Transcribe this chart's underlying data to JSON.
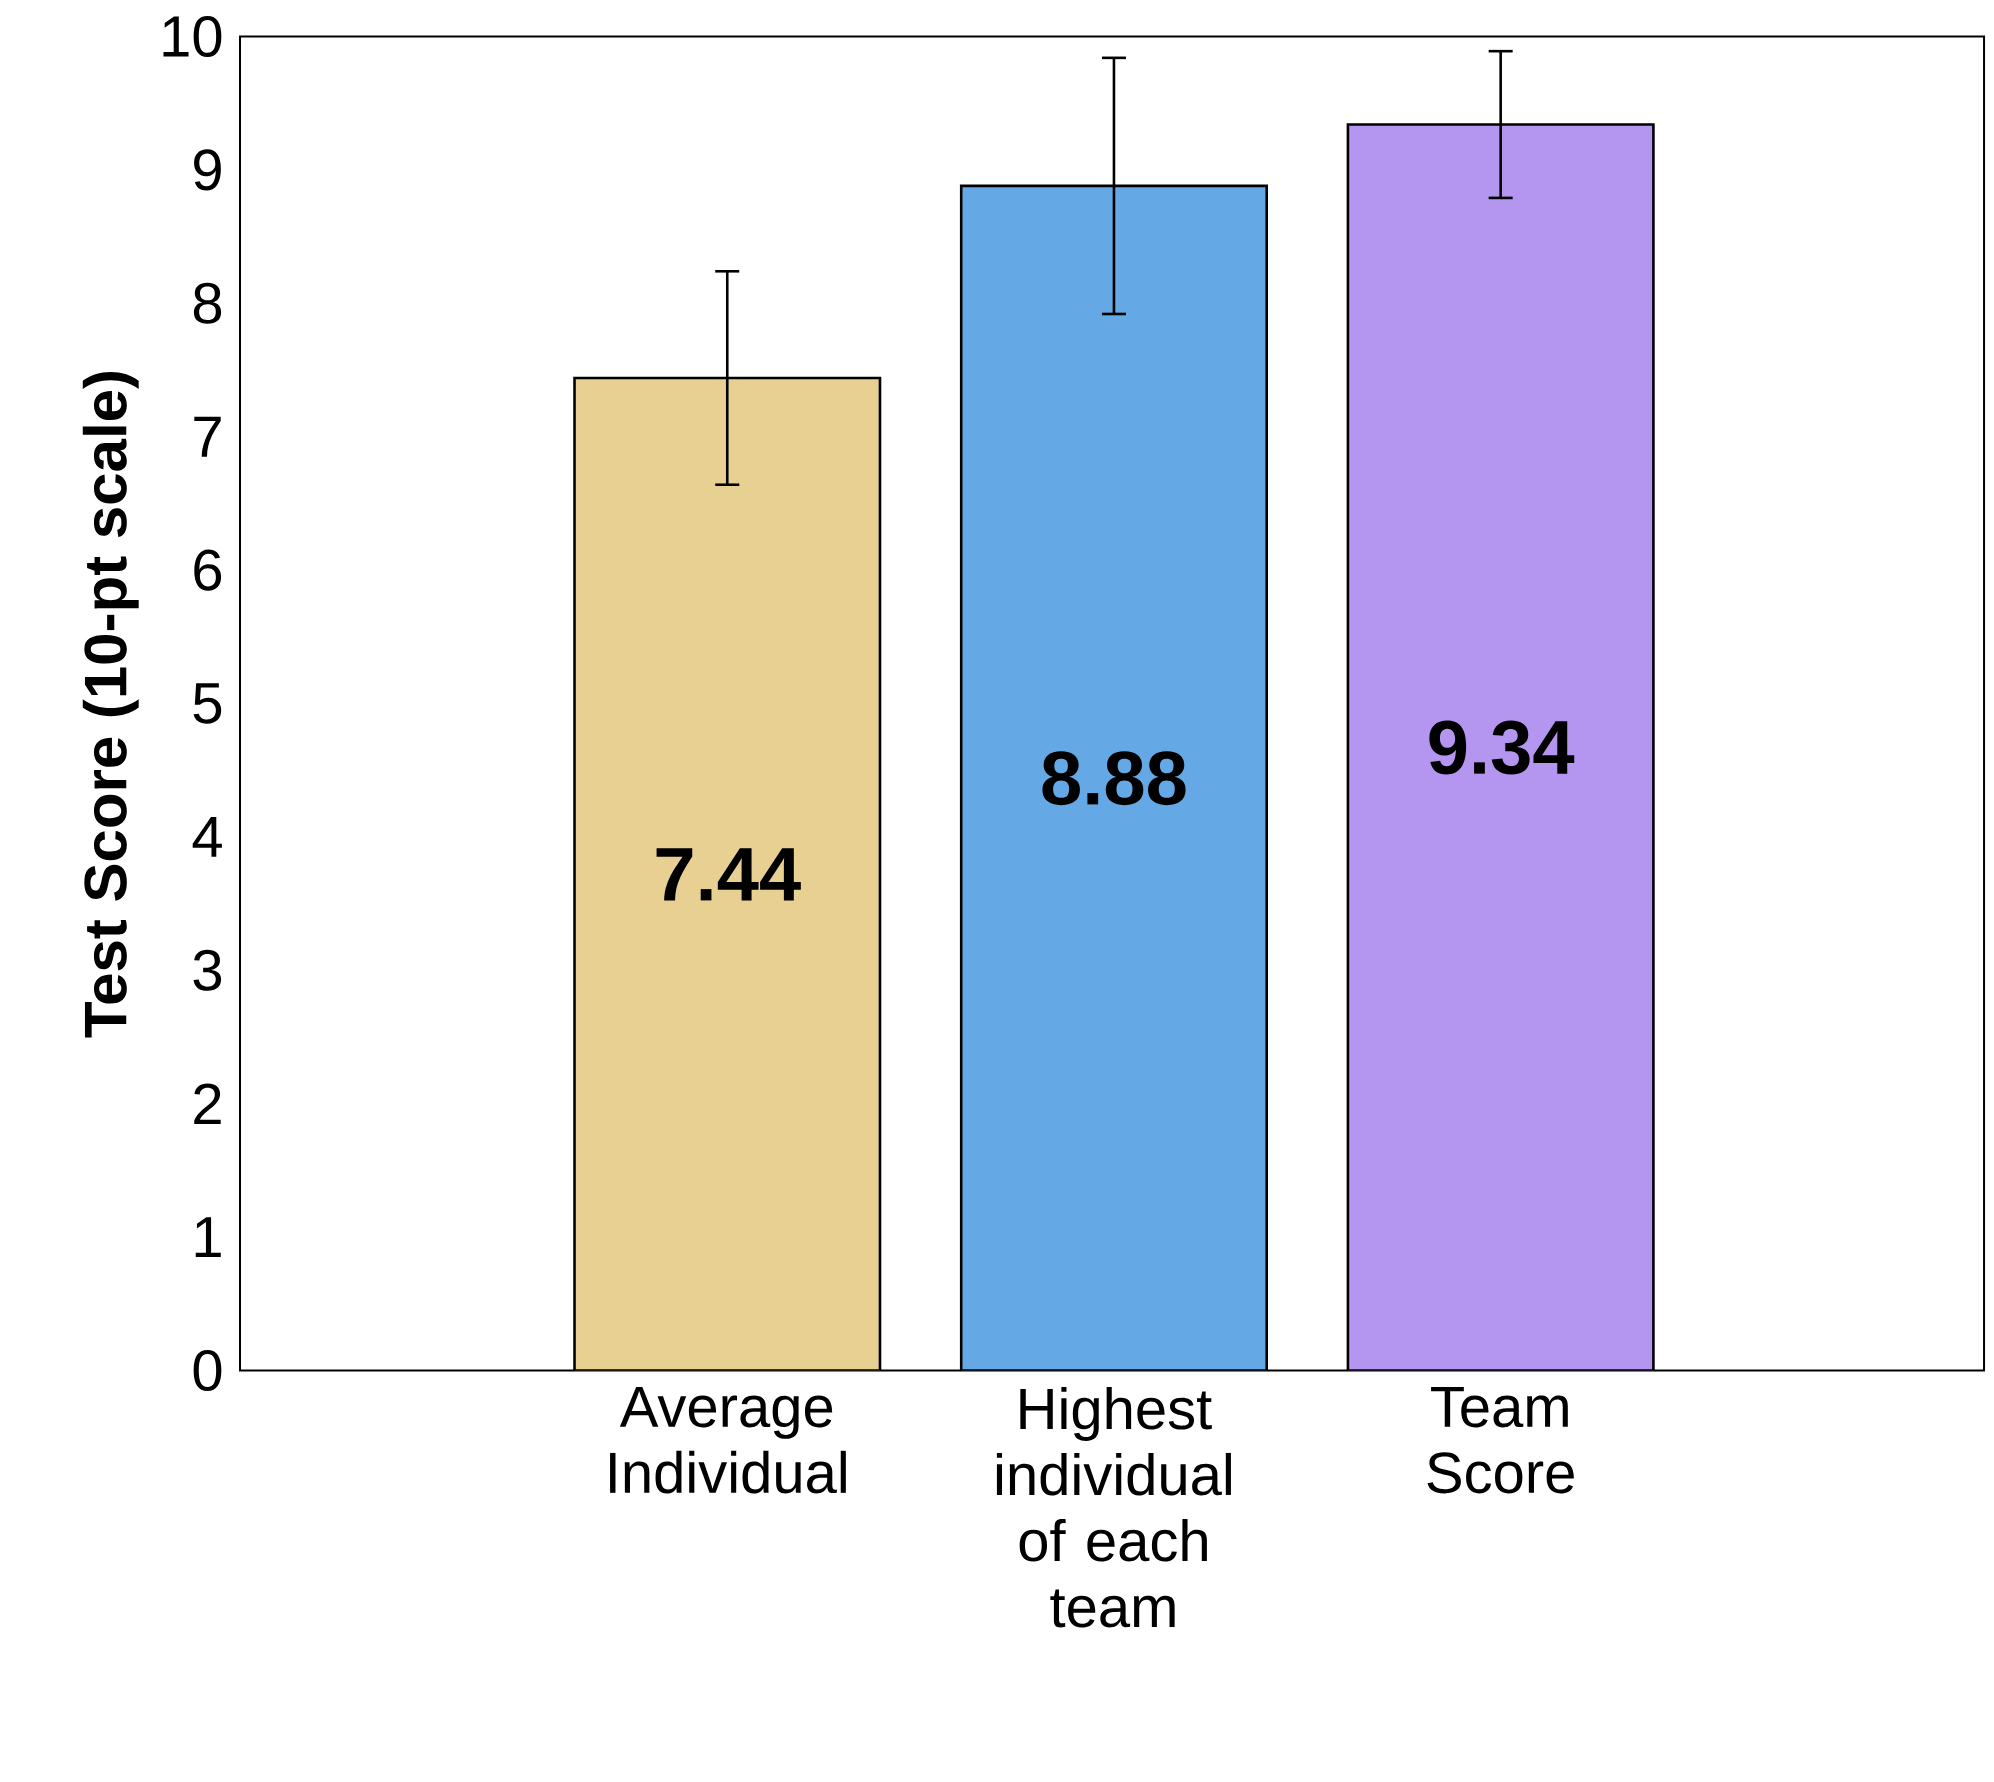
{
  "chart_data": {
    "type": "bar",
    "ylabel": "Test Score (10-pt scale)",
    "categories": [
      "Average Individual",
      "Highest individual of each team",
      "Team Score"
    ],
    "values": [
      7.44,
      8.88,
      9.34
    ],
    "colors": [
      "#e8cf92",
      "#64a9e6",
      "#b496f0"
    ],
    "errors": [
      0.8,
      0.96,
      0.55
    ],
    "data_labels": true,
    "ylim": [
      0,
      10
    ],
    "yticks": [
      0,
      1,
      2,
      3,
      4,
      5,
      6,
      7,
      8,
      9,
      10
    ],
    "grid": false
  }
}
